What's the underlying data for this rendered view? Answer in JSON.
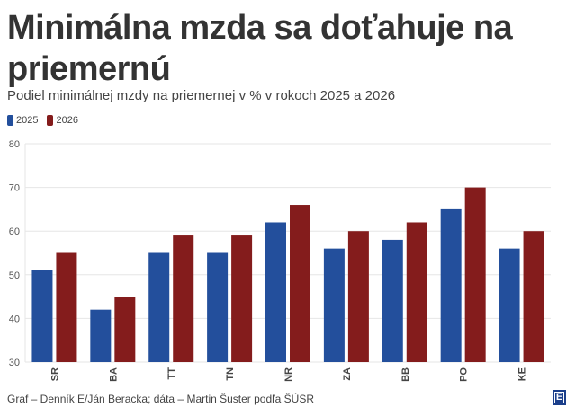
{
  "header": {
    "title": "Minimálna mzda sa doťahuje na priemernú",
    "subtitle": "Podiel minimálnej mzdy na priemernej v % v rokoch 2025 a 2026"
  },
  "footer": {
    "source": "Graf – Denník E/Ján Beracka; dáta – Martin Šuster podľa ŠÚSR",
    "logo_glyph": "E"
  },
  "colors": {
    "series_2025": "#234f9c",
    "series_2026": "#841c1c"
  },
  "chart_data": {
    "type": "bar",
    "title": "Minimálna mzda sa doťahuje na priemernú",
    "subtitle": "Podiel minimálnej mzdy na priemernej v % v rokoch 2025 a 2026",
    "xlabel": "",
    "ylabel": "",
    "categories": [
      "SR",
      "BA",
      "TT",
      "TN",
      "NR",
      "ZA",
      "BB",
      "PO",
      "KE"
    ],
    "series": [
      {
        "name": "2025",
        "color": "#234f9c",
        "values": [
          51,
          42,
          55,
          55,
          62,
          56,
          58,
          65,
          56
        ]
      },
      {
        "name": "2026",
        "color": "#841c1c",
        "values": [
          55,
          45,
          59,
          59,
          66,
          60,
          62,
          70,
          60
        ]
      }
    ],
    "ylim": [
      30,
      80
    ],
    "yticks": [
      30,
      40,
      50,
      60,
      70,
      80
    ],
    "grid": true,
    "legend": "top-left"
  }
}
